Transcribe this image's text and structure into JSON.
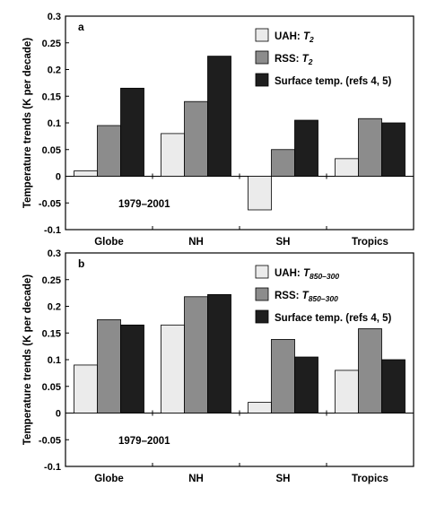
{
  "ylabel": "Temperature trends (K per decade)",
  "chart_data": [
    {
      "type": "bar",
      "panel": "a",
      "categories": [
        "Globe",
        "NH",
        "SH",
        "Tropics"
      ],
      "ylim": [
        -0.1,
        0.3
      ],
      "yticks": [
        "0.3",
        "0.25",
        "0.2",
        "0.15",
        "0.1",
        "0.05",
        "0",
        "-0.05",
        "-0.1"
      ],
      "ytick_values": [
        0.3,
        0.25,
        0.2,
        0.15,
        0.1,
        0.05,
        0,
        -0.05,
        -0.1
      ],
      "ylabel": "Temperature trends (K per decade)",
      "annotation": "1979–2001",
      "legend_position": "top-right",
      "series": [
        {
          "name": "UAH: T2",
          "legend_prefix": "UAH: ",
          "legend_sym": "T",
          "legend_sub": "2",
          "color": "#ebebeb",
          "values": [
            0.01,
            0.08,
            -0.063,
            0.033
          ]
        },
        {
          "name": "RSS: T2",
          "legend_prefix": "RSS: ",
          "legend_sym": "T",
          "legend_sub": "2",
          "color": "#8c8c8c",
          "values": [
            0.095,
            0.14,
            0.05,
            0.108
          ]
        },
        {
          "name": "Surface temp. (refs 4, 5)",
          "legend_prefix": "Surface temp. (refs 4, 5)",
          "legend_sym": "",
          "legend_sub": "",
          "color": "#1e1e1e",
          "values": [
            0.165,
            0.225,
            0.105,
            0.1
          ]
        }
      ]
    },
    {
      "type": "bar",
      "panel": "b",
      "categories": [
        "Globe",
        "NH",
        "SH",
        "Tropics"
      ],
      "ylim": [
        -0.1,
        0.3
      ],
      "yticks": [
        "0.3",
        "0.25",
        "0.2",
        "0.15",
        "0.1",
        "0.05",
        "0",
        "-0.05",
        "-0.1"
      ],
      "ytick_values": [
        0.3,
        0.25,
        0.2,
        0.15,
        0.1,
        0.05,
        0,
        -0.05,
        -0.1
      ],
      "ylabel": "Temperature trends (K per decade)",
      "annotation": "1979–2001",
      "legend_position": "top-right",
      "series": [
        {
          "name": "UAH: T850–300",
          "legend_prefix": "UAH: ",
          "legend_sym": "T",
          "legend_sub": "850–300",
          "color": "#ebebeb",
          "values": [
            0.09,
            0.165,
            0.02,
            0.08
          ]
        },
        {
          "name": "RSS: T850–300",
          "legend_prefix": "RSS: ",
          "legend_sym": "T",
          "legend_sub": "850–300",
          "color": "#8c8c8c",
          "values": [
            0.175,
            0.218,
            0.138,
            0.158
          ]
        },
        {
          "name": "Surface temp. (refs 4, 5)",
          "legend_prefix": "Surface temp. (refs 4, 5)",
          "legend_sym": "",
          "legend_sub": "",
          "color": "#1e1e1e",
          "values": [
            0.165,
            0.222,
            0.105,
            0.1
          ]
        }
      ]
    }
  ]
}
